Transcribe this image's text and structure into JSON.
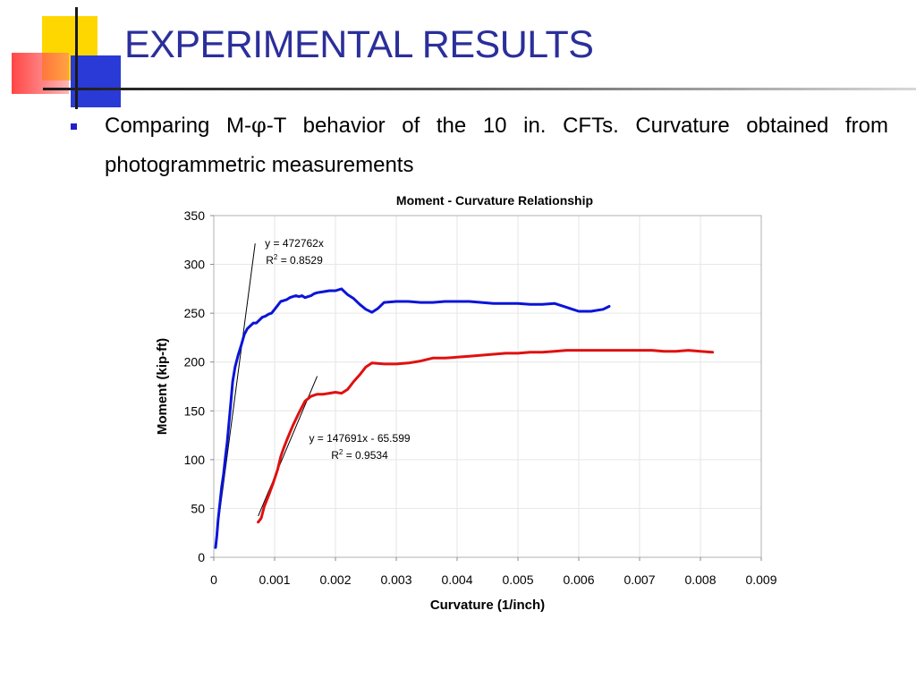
{
  "slide": {
    "title": "EXPERIMENTAL RESULTS",
    "bullet_prefix": "Comparing M-",
    "bullet_symbol": "φ",
    "bullet_suffix": "-T behavior of the 10 in. CFTs. Curvature obtained from photogrammetric measurements"
  },
  "colors": {
    "title": "#2b2f9a",
    "bullet": "#2020c8",
    "series_blue": "#0a14d8",
    "series_red": "#e01010"
  },
  "chart_data": {
    "type": "line",
    "title": "Moment - Curvature Relationship",
    "xlabel": "Curvature (1/inch)",
    "ylabel": "Moment (kip-ft)",
    "xlim": [
      0,
      0.009
    ],
    "ylim": [
      0,
      350
    ],
    "xticks": [
      "0",
      "0.001",
      "0.002",
      "0.003",
      "0.004",
      "0.005",
      "0.006",
      "0.007",
      "0.008",
      "0.009"
    ],
    "yticks": [
      "0",
      "50",
      "100",
      "150",
      "200",
      "250",
      "300",
      "350"
    ],
    "grid": true,
    "legend": "none",
    "series": [
      {
        "color": "#0a14d8",
        "points": [
          [
            3e-05,
            10
          ],
          [
            5e-05,
            22
          ],
          [
            7e-05,
            38
          ],
          [
            0.0001,
            55
          ],
          [
            0.00013,
            72
          ],
          [
            0.00016,
            85
          ],
          [
            0.00019,
            102
          ],
          [
            0.00022,
            118
          ],
          [
            0.00025,
            138
          ],
          [
            0.00028,
            158
          ],
          [
            0.00031,
            180
          ],
          [
            0.00035,
            195
          ],
          [
            0.0004,
            207
          ],
          [
            0.00045,
            217
          ],
          [
            0.0005,
            228
          ],
          [
            0.00055,
            234
          ],
          [
            0.0006,
            237
          ],
          [
            0.00065,
            240
          ],
          [
            0.0007,
            240
          ],
          [
            0.00075,
            243
          ],
          [
            0.0008,
            246
          ],
          [
            0.00085,
            247
          ],
          [
            0.0009,
            249
          ],
          [
            0.00095,
            250
          ],
          [
            0.001,
            254
          ],
          [
            0.00105,
            258
          ],
          [
            0.0011,
            262
          ],
          [
            0.00115,
            263
          ],
          [
            0.0012,
            264
          ],
          [
            0.00125,
            266
          ],
          [
            0.0013,
            267
          ],
          [
            0.00135,
            268
          ],
          [
            0.0014,
            267
          ],
          [
            0.00145,
            268
          ],
          [
            0.0015,
            266
          ],
          [
            0.00155,
            267
          ],
          [
            0.0016,
            268
          ],
          [
            0.00165,
            270
          ],
          [
            0.0017,
            271
          ],
          [
            0.0018,
            272
          ],
          [
            0.0019,
            273
          ],
          [
            0.002,
            273
          ],
          [
            0.0021,
            275
          ],
          [
            0.0022,
            269
          ],
          [
            0.0023,
            265
          ],
          [
            0.0024,
            259
          ],
          [
            0.0025,
            254
          ],
          [
            0.0026,
            251
          ],
          [
            0.0027,
            255
          ],
          [
            0.0028,
            261
          ],
          [
            0.003,
            262
          ],
          [
            0.0032,
            262
          ],
          [
            0.0034,
            261
          ],
          [
            0.0036,
            261
          ],
          [
            0.0038,
            262
          ],
          [
            0.004,
            262
          ],
          [
            0.0042,
            262
          ],
          [
            0.0044,
            261
          ],
          [
            0.0046,
            260
          ],
          [
            0.0048,
            260
          ],
          [
            0.005,
            260
          ],
          [
            0.0052,
            259
          ],
          [
            0.0054,
            259
          ],
          [
            0.0056,
            260
          ],
          [
            0.0058,
            256
          ],
          [
            0.006,
            252
          ],
          [
            0.0062,
            252
          ],
          [
            0.0064,
            254
          ],
          [
            0.0065,
            257
          ]
        ],
        "trendline": {
          "x": [
            5e-05,
            0.00068
          ],
          "equation": "y = 472762x",
          "r2_label": "R",
          "r2_sup": "2",
          "r2_value": " = 0.8529"
        }
      },
      {
        "color": "#e01010",
        "points": [
          [
            0.00073,
            36
          ],
          [
            0.00078,
            40
          ],
          [
            0.00083,
            52
          ],
          [
            0.0009,
            63
          ],
          [
            0.00097,
            75
          ],
          [
            0.00105,
            90
          ],
          [
            0.0011,
            103
          ],
          [
            0.00115,
            112
          ],
          [
            0.0012,
            120
          ],
          [
            0.0013,
            135
          ],
          [
            0.0014,
            148
          ],
          [
            0.0015,
            160
          ],
          [
            0.0016,
            165
          ],
          [
            0.0017,
            167
          ],
          [
            0.0018,
            167
          ],
          [
            0.0019,
            168
          ],
          [
            0.002,
            169
          ],
          [
            0.0021,
            168
          ],
          [
            0.0022,
            172
          ],
          [
            0.0023,
            180
          ],
          [
            0.0024,
            187
          ],
          [
            0.0025,
            195
          ],
          [
            0.0026,
            199
          ],
          [
            0.0028,
            198
          ],
          [
            0.003,
            198
          ],
          [
            0.0032,
            199
          ],
          [
            0.0034,
            201
          ],
          [
            0.0036,
            204
          ],
          [
            0.0038,
            204
          ],
          [
            0.004,
            205
          ],
          [
            0.0042,
            206
          ],
          [
            0.0044,
            207
          ],
          [
            0.0046,
            208
          ],
          [
            0.0048,
            209
          ],
          [
            0.005,
            209
          ],
          [
            0.0052,
            210
          ],
          [
            0.0054,
            210
          ],
          [
            0.0056,
            211
          ],
          [
            0.0058,
            212
          ],
          [
            0.006,
            212
          ],
          [
            0.0062,
            212
          ],
          [
            0.0064,
            212
          ],
          [
            0.0066,
            212
          ],
          [
            0.0068,
            212
          ],
          [
            0.007,
            212
          ],
          [
            0.0072,
            212
          ],
          [
            0.0074,
            211
          ],
          [
            0.0076,
            211
          ],
          [
            0.0078,
            212
          ],
          [
            0.008,
            211
          ],
          [
            0.0082,
            210
          ]
        ],
        "trendline": {
          "x": [
            0.00073,
            0.0017
          ],
          "equation": "y = 147691x - 65.599",
          "r2_label": "R",
          "r2_sup": "2",
          "r2_value": " = 0.9534"
        }
      }
    ]
  }
}
